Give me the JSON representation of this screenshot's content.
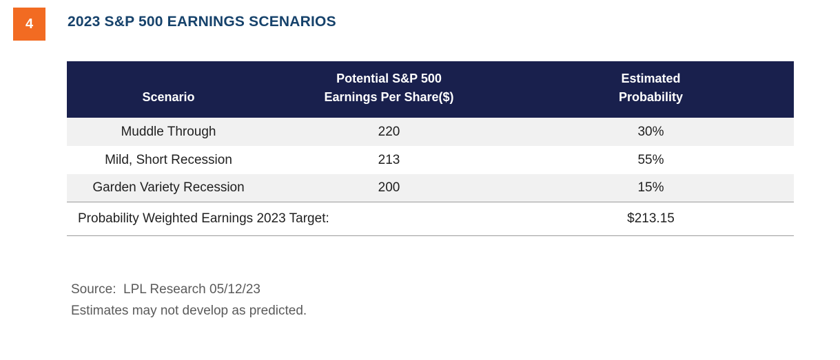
{
  "badge": "4",
  "title": "2023 S&P 500 EARNINGS SCENARIOS",
  "table": {
    "headers": [
      "Scenario",
      "Potential S&P 500\nEarnings Per Share($)",
      "Estimated\nProbability"
    ],
    "rows": [
      [
        "Muddle Through",
        "220",
        "30%"
      ],
      [
        "Mild, Short Recession",
        "213",
        "55%"
      ],
      [
        "Garden Variety Recession",
        "200",
        "15%"
      ]
    ],
    "total_label": "Probability Weighted Earnings 2023 Target:",
    "total_value": "$213.15"
  },
  "footer": {
    "source": "Source:  LPL Research 05/12/23",
    "note": "Estimates may not develop as predicted."
  },
  "colors": {
    "badge": "#f26b22",
    "title": "#16426b",
    "header_bg": "#19204d",
    "row_shade": "#f1f1f1"
  }
}
